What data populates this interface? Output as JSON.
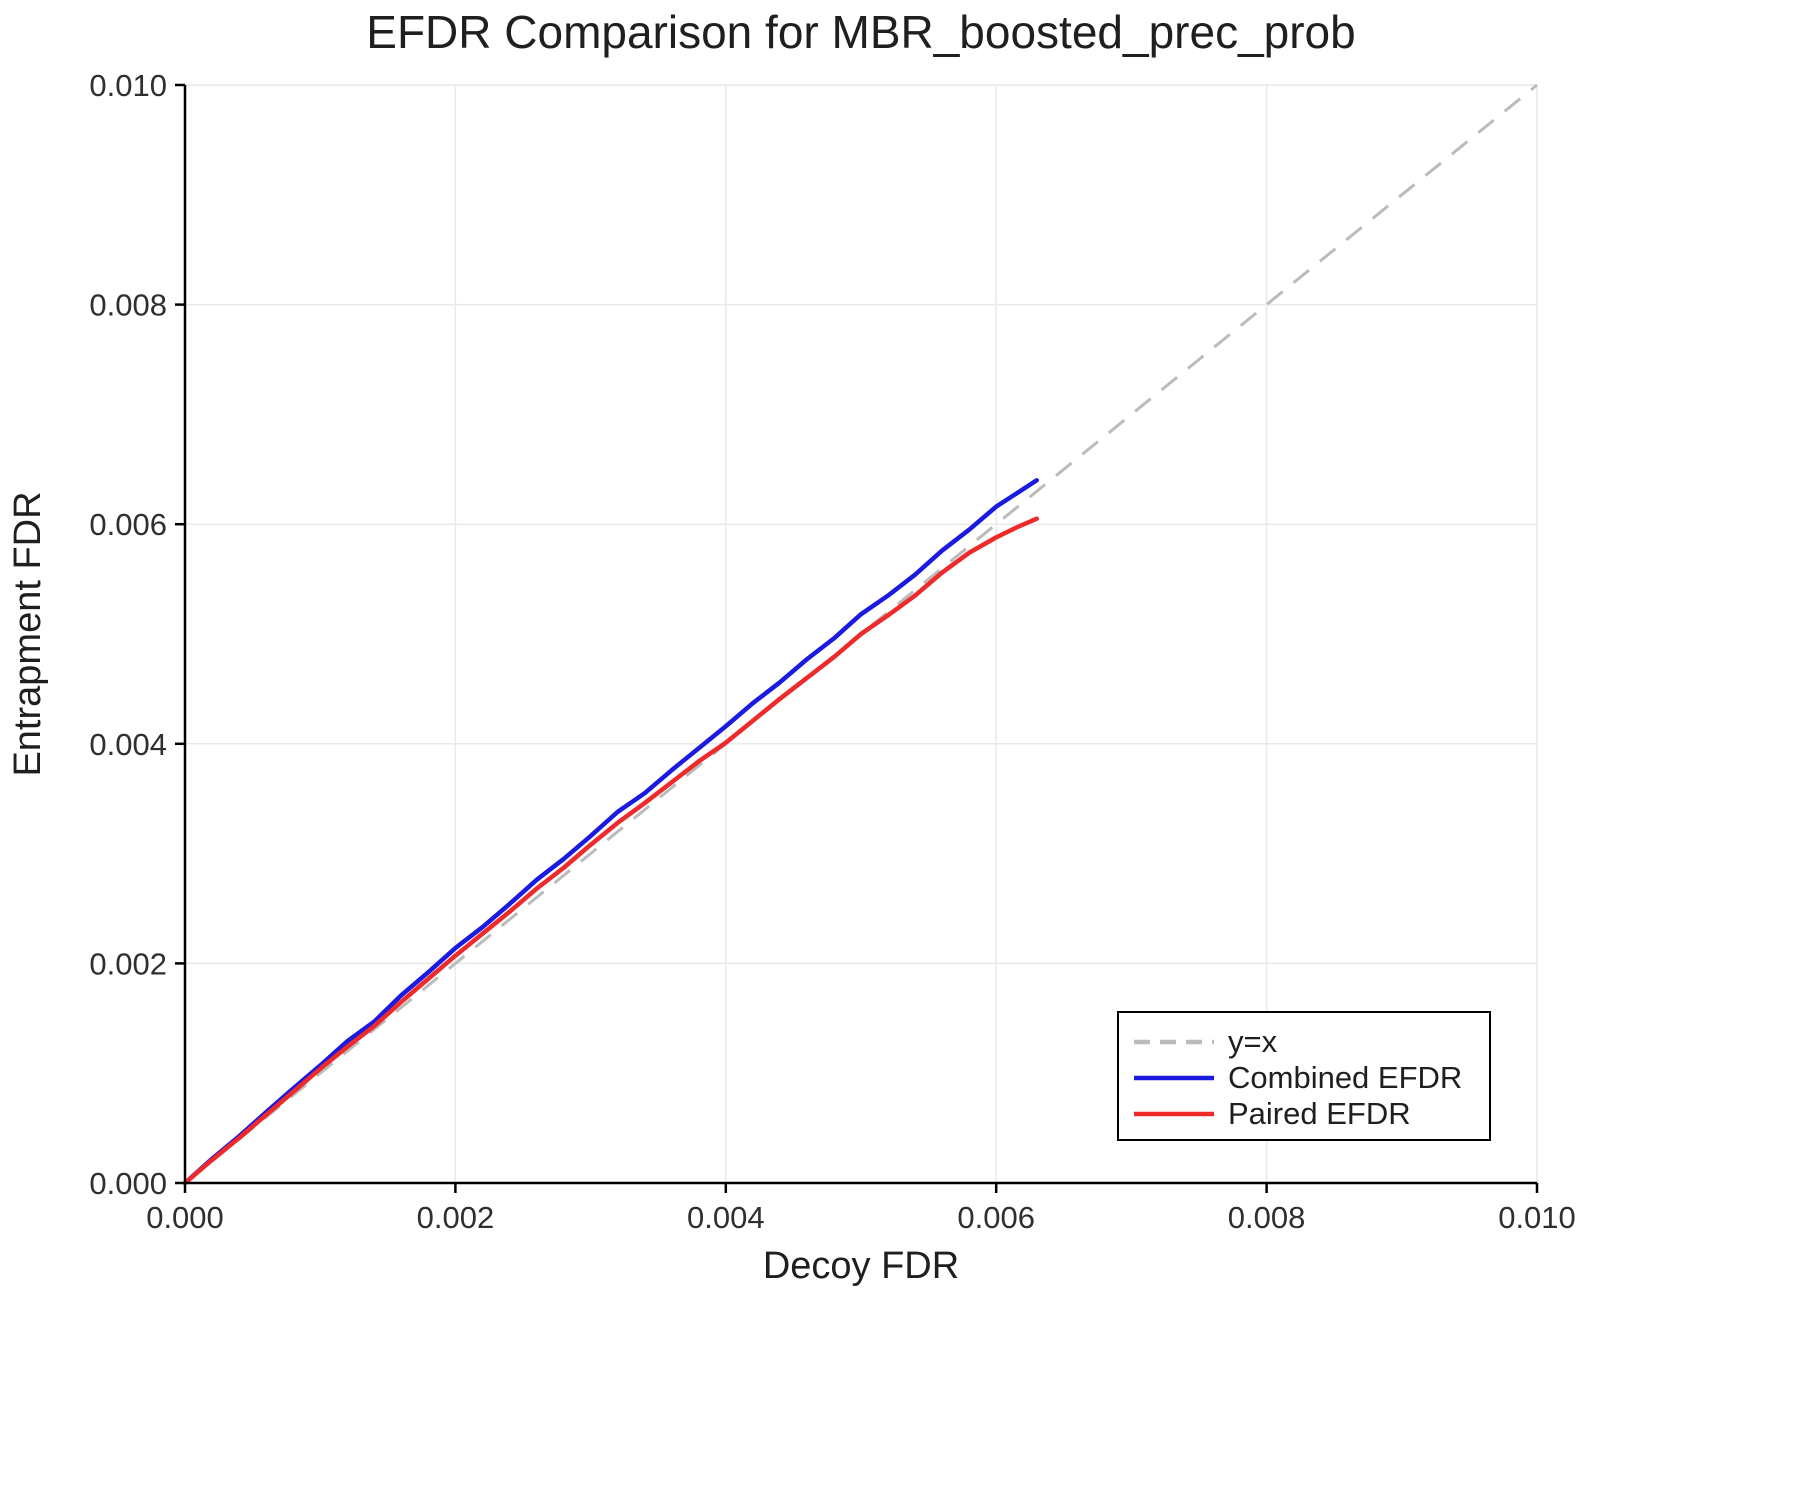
{
  "chart_data": {
    "type": "line",
    "title": "EFDR Comparison for MBR_boosted_prec_prob",
    "xlabel": "Decoy FDR",
    "ylabel": "Entrapment FDR",
    "xlim": [
      0.0,
      0.01
    ],
    "ylim": [
      0.0,
      0.01
    ],
    "xticks": [
      0.0,
      0.002,
      0.004,
      0.006,
      0.008,
      0.01
    ],
    "yticks": [
      0.0,
      0.002,
      0.004,
      0.006,
      0.008,
      0.01
    ],
    "tick_decimals": 3,
    "grid": true,
    "grid_color": "#e9e9e9",
    "spine_color": "#000000",
    "legend_position": "bottom-right",
    "reference_line": {
      "label": "y=x",
      "color": "#bbbbbb",
      "dash": true,
      "from": [
        0.0,
        0.0
      ],
      "to": [
        0.01,
        0.01
      ]
    },
    "series": [
      {
        "name": "Combined EFDR",
        "color": "#1a1ae0",
        "dash": false,
        "x": [
          0,
          0.0002,
          0.0004,
          0.0006,
          0.0008,
          0.001,
          0.0012,
          0.0014,
          0.0016,
          0.0018,
          0.002,
          0.0022,
          0.0024,
          0.0026,
          0.0028,
          0.003,
          0.0032,
          0.0034,
          0.0036,
          0.0038,
          0.004,
          0.0042,
          0.0044,
          0.0046,
          0.0048,
          0.005,
          0.0052,
          0.0054,
          0.0056,
          0.0058,
          0.006,
          0.00615,
          0.0063
        ],
        "y": [
          0,
          0.00022,
          0.000425,
          0.000645,
          0.00086,
          0.00107,
          0.00129,
          0.00147,
          0.00171,
          0.00192,
          0.00214,
          0.00233,
          0.00254,
          0.00276,
          0.00295,
          0.00316,
          0.00338,
          0.00355,
          0.00376,
          0.00396,
          0.00416,
          0.00437,
          0.00456,
          0.00477,
          0.00496,
          0.00518,
          0.00535,
          0.00554,
          0.00576,
          0.00595,
          0.00616,
          0.00628,
          0.0064
        ]
      },
      {
        "name": "Paired EFDR",
        "color": "#ee2a2a",
        "dash": false,
        "x": [
          0,
          0.0002,
          0.0004,
          0.0006,
          0.0008,
          0.001,
          0.0012,
          0.0014,
          0.0016,
          0.0018,
          0.002,
          0.0022,
          0.0024,
          0.0026,
          0.0028,
          0.003,
          0.0032,
          0.0034,
          0.0036,
          0.0038,
          0.004,
          0.0042,
          0.0044,
          0.0046,
          0.0048,
          0.005,
          0.0052,
          0.0054,
          0.0056,
          0.0058,
          0.006,
          0.00615,
          0.0063
        ],
        "y": [
          0,
          0.00021,
          0.00041,
          0.00062,
          0.00083,
          0.00104,
          0.00124,
          0.00143,
          0.00165,
          0.00186,
          0.00207,
          0.00227,
          0.00247,
          0.00268,
          0.00287,
          0.00308,
          0.00328,
          0.00346,
          0.00365,
          0.00384,
          0.00401,
          0.00421,
          0.00441,
          0.0046,
          0.00479,
          0.005,
          0.00517,
          0.00535,
          0.00556,
          0.00574,
          0.00588,
          0.00597,
          0.00605
        ]
      }
    ],
    "legend_labels": [
      "y=x",
      "Combined EFDR",
      "Paired EFDR"
    ]
  }
}
